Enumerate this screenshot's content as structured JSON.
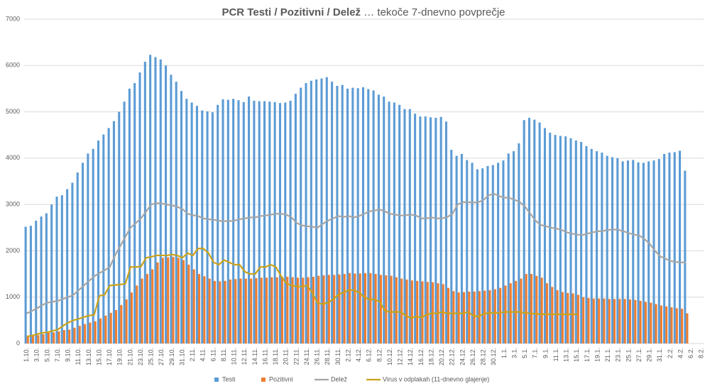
{
  "chart_data": {
    "type": "bar",
    "title": "PCR Testi / Pozitivni / Delež",
    "subtitle": "… tekoče 7-dnevno povprečje",
    "categories": [
      "1.10.",
      null,
      "3.10.",
      null,
      "5.10.",
      null,
      "7.10.",
      null,
      "9.10.",
      null,
      "11.10.",
      null,
      "13.10.",
      null,
      "15.10.",
      null,
      "17.10.",
      null,
      "19.10.",
      null,
      "21.10.",
      null,
      "23.10.",
      null,
      "25.10.",
      null,
      "27.10.",
      null,
      "29.10.",
      null,
      "31.10.",
      null,
      "2.11.",
      null,
      "4.11.",
      null,
      "6.11.",
      null,
      "8.11.",
      null,
      "10.11.",
      null,
      "12.11.",
      null,
      "14.11.",
      null,
      "16.11.",
      null,
      "18.11.",
      null,
      "20.11.",
      null,
      "22.11.",
      null,
      "24.11.",
      null,
      "26.11.",
      null,
      "28.11.",
      null,
      "30.11.",
      null,
      "2.12.",
      null,
      "4.12.",
      null,
      "6.12.",
      null,
      "8.12.",
      null,
      "10.12.",
      null,
      "12.12.",
      null,
      "14.12.",
      null,
      "16.12.",
      null,
      "18.12.",
      null,
      "20.12.",
      null,
      "22.12.",
      null,
      "24.12.",
      null,
      "26.12.",
      null,
      "28.12.",
      null,
      "30.12.",
      null,
      "1.1.",
      null,
      "3.1.",
      null,
      "5.1.",
      null,
      "7.1.",
      null,
      "9.1.",
      null,
      "11.1.",
      null,
      "13.1.",
      null,
      "15.1.",
      null,
      "17.1.",
      null,
      "19.1.",
      null,
      "21.1.",
      null,
      "23.1.",
      null,
      "25.1.",
      null,
      "27.1.",
      null,
      "29.1.",
      null,
      "31.1.",
      null,
      "2.2.",
      null,
      "4.2.",
      null,
      "6.2.",
      null,
      "8.2."
    ],
    "series": [
      {
        "name": "Testi",
        "type": "bar",
        "color": "#5b9bd5",
        "values": [
          2520,
          2540,
          2650,
          2740,
          2810,
          3000,
          3170,
          3200,
          3330,
          3470,
          3690,
          3900,
          4100,
          4200,
          4380,
          4510,
          4650,
          4800,
          5000,
          5220,
          5500,
          5620,
          5850,
          6080,
          6230,
          6180,
          6130,
          6000,
          5800,
          5650,
          5450,
          5280,
          5200,
          5130,
          5030,
          5010,
          4990,
          5150,
          5270,
          5260,
          5280,
          5250,
          5210,
          5330,
          5240,
          5230,
          5230,
          5220,
          5210,
          5190,
          5200,
          5240,
          5390,
          5520,
          5620,
          5670,
          5700,
          5720,
          5750,
          5650,
          5560,
          5580,
          5500,
          5520,
          5510,
          5530,
          5490,
          5460,
          5370,
          5330,
          5220,
          5200,
          5150,
          5060,
          5060,
          4960,
          4900,
          4900,
          4880,
          4870,
          4890,
          4790,
          4180,
          4050,
          4090,
          3960,
          3900,
          3760,
          3780,
          3830,
          3850,
          3900,
          3950,
          4100,
          4150,
          4320,
          4820,
          4870,
          4830,
          4770,
          4650,
          4550,
          4500,
          4480,
          4470,
          4430,
          4380,
          4350,
          4260,
          4200,
          4150,
          4120,
          4050,
          4020,
          4000,
          3930,
          3950,
          3960,
          3910,
          3900,
          3930,
          3950,
          3980,
          4090,
          4120,
          4130,
          4160,
          3730,
          null,
          null,
          null
        ]
      },
      {
        "name": "Pozitivni",
        "type": "bar",
        "color": "#ed7d31",
        "values": [
          140,
          160,
          180,
          200,
          230,
          240,
          260,
          290,
          300,
          340,
          380,
          420,
          450,
          480,
          540,
          600,
          660,
          720,
          830,
          950,
          1100,
          1250,
          1400,
          1500,
          1600,
          1750,
          1850,
          1860,
          1870,
          1850,
          1800,
          1700,
          1600,
          1500,
          1450,
          1400,
          1350,
          1340,
          1350,
          1380,
          1390,
          1400,
          1400,
          1400,
          1410,
          1420,
          1420,
          1430,
          1430,
          1440,
          1440,
          1430,
          1420,
          1420,
          1430,
          1440,
          1460,
          1470,
          1480,
          1480,
          1490,
          1500,
          1520,
          1510,
          1510,
          1520,
          1520,
          1500,
          1480,
          1470,
          1460,
          1430,
          1400,
          1380,
          1360,
          1350,
          1340,
          1330,
          1320,
          1300,
          1280,
          1200,
          1130,
          1100,
          1110,
          1120,
          1120,
          1130,
          1140,
          1150,
          1170,
          1200,
          1250,
          1300,
          1350,
          1400,
          1500,
          1500,
          1460,
          1420,
          1300,
          1220,
          1150,
          1110,
          1090,
          1080,
          1050,
          1000,
          980,
          970,
          970,
          970,
          960,
          960,
          960,
          960,
          950,
          940,
          920,
          900,
          880,
          850,
          820,
          800,
          780,
          760,
          750,
          650,
          null,
          null,
          null
        ]
      },
      {
        "name": "Delež",
        "type": "line",
        "color": "#a5a5a5",
        "values": [
          650,
          700,
          760,
          830,
          880,
          900,
          920,
          960,
          1000,
          1050,
          1150,
          1250,
          1350,
          1450,
          1520,
          1580,
          1650,
          1900,
          2100,
          2300,
          2500,
          2600,
          2700,
          2850,
          3000,
          3030,
          3020,
          3000,
          2980,
          2950,
          2900,
          2800,
          2770,
          2750,
          2700,
          2680,
          2670,
          2650,
          2640,
          2640,
          2650,
          2680,
          2700,
          2720,
          2720,
          2750,
          2760,
          2780,
          2800,
          2800,
          2780,
          2720,
          2600,
          2550,
          2530,
          2520,
          2500,
          2580,
          2650,
          2700,
          2750,
          2730,
          2750,
          2720,
          2750,
          2800,
          2850,
          2870,
          2890,
          2850,
          2800,
          2780,
          2760,
          2770,
          2780,
          2760,
          2700,
          2700,
          2720,
          2700,
          2700,
          2730,
          2800,
          3000,
          3050,
          3050,
          3040,
          3050,
          3100,
          3200,
          3230,
          3180,
          3150,
          3140,
          3100,
          3050,
          2950,
          2800,
          2650,
          2560,
          2530,
          2500,
          2480,
          2450,
          2400,
          2370,
          2350,
          2340,
          2370,
          2400,
          2420,
          2430,
          2450,
          2460,
          2450,
          2420,
          2380,
          2350,
          2330,
          2250,
          2150,
          2000,
          1880,
          1830,
          1780,
          1760,
          1750,
          1750,
          null,
          null,
          null
        ]
      },
      {
        "name": "Virus v odplakah (11-dnevno glajenje)",
        "type": "line",
        "color": "#c9a21a",
        "values": [
          150,
          170,
          200,
          230,
          240,
          270,
          300,
          380,
          450,
          500,
          530,
          570,
          600,
          620,
          1030,
          1050,
          1250,
          1260,
          1270,
          1290,
          1650,
          1650,
          1660,
          1850,
          1870,
          1900,
          1900,
          1900,
          1920,
          1900,
          1850,
          1950,
          1900,
          2050,
          2050,
          1950,
          1750,
          1700,
          1800,
          1750,
          1700,
          1700,
          1550,
          1500,
          1500,
          1650,
          1650,
          1700,
          1650,
          1450,
          1300,
          1250,
          1230,
          1230,
          1250,
          1100,
          870,
          850,
          880,
          950,
          1050,
          1100,
          1150,
          1150,
          1100,
          1000,
          950,
          950,
          900,
          700,
          680,
          680,
          680,
          600,
          550,
          580,
          560,
          620,
          650,
          650,
          680,
          650,
          650,
          650,
          650,
          680,
          600,
          580,
          640,
          660,
          660,
          660,
          680,
          680,
          680,
          680,
          660,
          650,
          640,
          630,
          630,
          630,
          630,
          630,
          630,
          630,
          630,
          null,
          null,
          null,
          null,
          null,
          null,
          null,
          null,
          null,
          null,
          null,
          null,
          null,
          null,
          null,
          null,
          null,
          null,
          null,
          null,
          null,
          null,
          null,
          null
        ]
      }
    ],
    "ylim": [
      0,
      7000
    ],
    "yticks": [
      0,
      1000,
      2000,
      3000,
      4000,
      5000,
      6000,
      7000
    ],
    "grid": true,
    "legend": "bottom"
  }
}
